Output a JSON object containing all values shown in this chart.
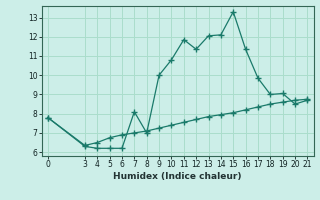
{
  "title": "",
  "xlabel": "Humidex (Indice chaleur)",
  "background_color": "#cceee8",
  "grid_color": "#aaddcc",
  "line_color": "#1a7a6a",
  "spine_color": "#336655",
  "xlim": [
    -0.5,
    21.5
  ],
  "ylim": [
    5.8,
    13.6
  ],
  "xticks": [
    0,
    3,
    4,
    5,
    6,
    7,
    8,
    9,
    10,
    11,
    12,
    13,
    14,
    15,
    16,
    17,
    18,
    19,
    20,
    21
  ],
  "yticks": [
    6,
    7,
    8,
    9,
    10,
    11,
    12,
    13
  ],
  "line1_x": [
    0,
    3,
    4,
    5,
    6,
    7,
    8,
    9,
    10,
    11,
    12,
    13,
    14,
    15,
    16,
    17,
    18,
    19,
    20,
    21
  ],
  "line1_y": [
    7.8,
    6.3,
    6.2,
    6.2,
    6.2,
    8.1,
    7.0,
    10.0,
    10.8,
    11.85,
    11.35,
    12.05,
    12.1,
    13.3,
    11.35,
    9.85,
    9.0,
    9.05,
    8.5,
    8.7
  ],
  "line2_x": [
    0,
    3,
    4,
    5,
    6,
    7,
    8,
    9,
    10,
    11,
    12,
    13,
    14,
    15,
    16,
    17,
    18,
    19,
    20,
    21
  ],
  "line2_y": [
    7.8,
    6.35,
    6.5,
    6.75,
    6.9,
    7.0,
    7.1,
    7.25,
    7.4,
    7.55,
    7.7,
    7.85,
    7.95,
    8.05,
    8.2,
    8.35,
    8.5,
    8.6,
    8.7,
    8.75
  ],
  "tick_labelsize": 5.5,
  "xlabel_fontsize": 6.5,
  "marker_size": 2.5
}
